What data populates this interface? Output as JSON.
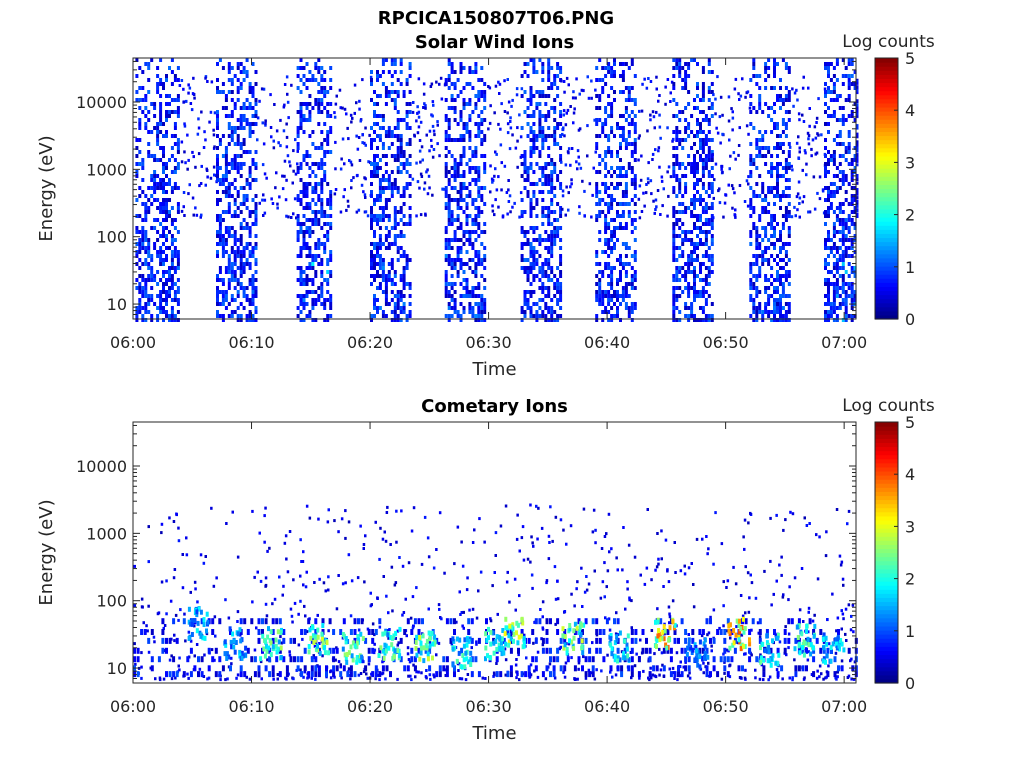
{
  "figure": {
    "title": "RPCICA150807T06.PNG"
  },
  "chart_data": [
    {
      "type": "heatmap",
      "title": "Solar Wind Ions",
      "xlabel": "Time",
      "ylabel": "Energy (eV)",
      "x_ticks": [
        "06:00",
        "06:10",
        "06:20",
        "06:30",
        "06:40",
        "06:50",
        "07:00"
      ],
      "y_ticks": [
        10,
        100,
        1000,
        10000
      ],
      "y_scale": "log",
      "ylim": [
        6,
        45000
      ],
      "xlim_minutes": [
        0,
        61
      ],
      "colorbar": {
        "label": "Log counts",
        "range": [
          0,
          5
        ],
        "ticks": [
          0,
          1,
          2,
          3,
          4,
          5
        ],
        "colormap": "jet"
      },
      "bursts": [
        {
          "start_min": 0.2,
          "end_min": 3.8,
          "peak": 1.0
        },
        {
          "start_min": 7.0,
          "end_min": 10.3,
          "peak": 1.1
        },
        {
          "start_min": 13.8,
          "end_min": 16.8,
          "peak": 1.8
        },
        {
          "start_min": 20.0,
          "end_min": 23.5,
          "peak": 1.3
        },
        {
          "start_min": 26.3,
          "end_min": 29.8,
          "peak": 1.3
        },
        {
          "start_min": 32.7,
          "end_min": 36.0,
          "peak": 0.9
        },
        {
          "start_min": 39.0,
          "end_min": 42.5,
          "peak": 0.9
        },
        {
          "start_min": 45.5,
          "end_min": 48.8,
          "peak": 0.9
        },
        {
          "start_min": 52.0,
          "end_min": 55.3,
          "peak": 1.2
        },
        {
          "start_min": 58.3,
          "end_min": 61.0,
          "peak": 1.6
        }
      ]
    },
    {
      "type": "heatmap",
      "title": "Cometary Ions",
      "xlabel": "Time",
      "ylabel": "Energy (eV)",
      "x_ticks": [
        "06:00",
        "06:10",
        "06:20",
        "06:30",
        "06:40",
        "06:50",
        "07:00"
      ],
      "y_ticks": [
        10,
        100,
        1000,
        10000
      ],
      "y_scale": "log",
      "ylim": [
        6,
        45000
      ],
      "xlim_minutes": [
        0,
        61
      ],
      "colorbar": {
        "label": "Log counts",
        "range": [
          0,
          5
        ],
        "ticks": [
          0,
          1,
          2,
          3,
          4,
          5
        ],
        "colormap": "jet"
      },
      "hotspots": [
        {
          "t_min": 5.5,
          "energy_ev": 50,
          "value": 2.0
        },
        {
          "t_min": 8.5,
          "energy_ev": 25,
          "value": 1.8
        },
        {
          "t_min": 11.5,
          "energy_ev": 25,
          "value": 2.8
        },
        {
          "t_min": 15.5,
          "energy_ev": 30,
          "value": 3.0
        },
        {
          "t_min": 18.5,
          "energy_ev": 22,
          "value": 2.7
        },
        {
          "t_min": 21.5,
          "energy_ev": 25,
          "value": 2.6
        },
        {
          "t_min": 24.5,
          "energy_ev": 22,
          "value": 3.1
        },
        {
          "t_min": 27.5,
          "energy_ev": 18,
          "value": 2.3
        },
        {
          "t_min": 30.3,
          "energy_ev": 25,
          "value": 2.4
        },
        {
          "t_min": 32.0,
          "energy_ev": 35,
          "value": 3.2
        },
        {
          "t_min": 37.0,
          "energy_ev": 30,
          "value": 3.0
        },
        {
          "t_min": 41.0,
          "energy_ev": 22,
          "value": 2.3
        },
        {
          "t_min": 44.8,
          "energy_ev": 35,
          "value": 4.0
        },
        {
          "t_min": 47.5,
          "energy_ev": 18,
          "value": 1.6
        },
        {
          "t_min": 51.0,
          "energy_ev": 35,
          "value": 4.1
        },
        {
          "t_min": 53.5,
          "energy_ev": 20,
          "value": 2.4
        },
        {
          "t_min": 56.5,
          "energy_ev": 28,
          "value": 2.6
        },
        {
          "t_min": 59.0,
          "energy_ev": 22,
          "value": 2.0
        }
      ]
    }
  ]
}
